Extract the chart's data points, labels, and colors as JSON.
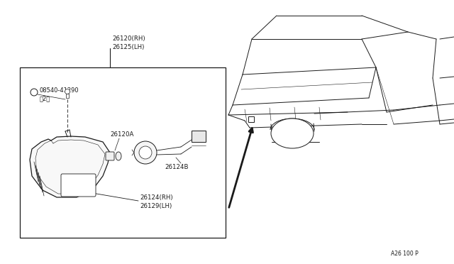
{
  "bg_color": "#ffffff",
  "line_color": "#1a1a1a",
  "fig_width": 6.4,
  "fig_height": 3.72,
  "dpi": 100,
  "labels": {
    "part_top_1": "26120(RH)",
    "part_top_2": "26125(LH)",
    "part_screw_1": "© 08540-41290",
    "part_screw_2": "〈 2〉",
    "part_bulb": "26120A",
    "part_harness": "26124B",
    "part_lens_1": "26124(RH)",
    "part_lens_2": "26129(LH)",
    "part_code": "A26 100 P"
  }
}
